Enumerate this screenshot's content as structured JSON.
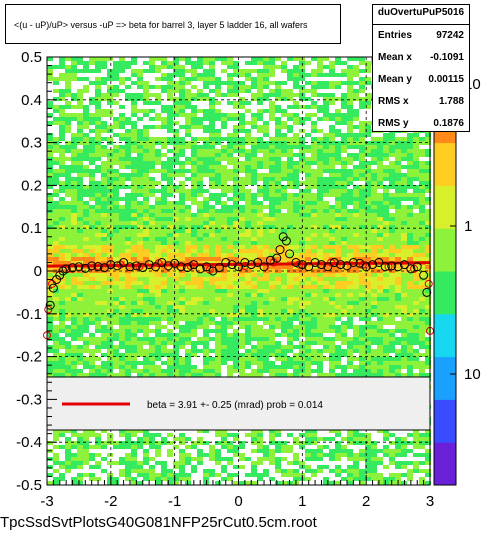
{
  "title": "<(u - uP)/uP> versus  -uP => beta for barrel 3, layer 5 ladder 16, all wafers",
  "stats": {
    "name": "duOvertuPuP5016",
    "rows": [
      {
        "label": "Entries",
        "value": "97242"
      },
      {
        "label": "Mean x",
        "value": "-0.1091"
      },
      {
        "label": "Mean y",
        "value": "0.00115"
      },
      {
        "label": "RMS x",
        "value": "1.788"
      },
      {
        "label": "RMS y",
        "value": "0.1876"
      }
    ]
  },
  "legend": {
    "entry": "beta =    3.91 +-  0.25 (mrad) prob = 0.014"
  },
  "filename": "TpcSsdSvtPlotsG40G081NFP25rCut0.5cm.root",
  "colors": {
    "frame": "#000000",
    "fit_line": "#e00000",
    "legend_bg": "#efefef",
    "palette": [
      "#6a1fd9",
      "#3a4cff",
      "#1aa0ff",
      "#17d7f0",
      "#36ea60",
      "#8ff23a",
      "#d8f02c",
      "#ffcc22",
      "#ff8a1a",
      "#ff2a10"
    ]
  },
  "palette_labels": [
    "10",
    "1",
    "10"
  ],
  "chart_data": {
    "type": "heatmap",
    "xlim": [
      -3,
      3
    ],
    "ylim": [
      -0.5,
      0.5
    ],
    "x_ticks": [
      "-3",
      "-2",
      "-1",
      "0",
      "1",
      "2",
      "3"
    ],
    "y_ticks": [
      "-0.5",
      "-0.4",
      "-0.3",
      "-0.2",
      "-0.1",
      "0",
      "0.1",
      "0.2",
      "0.3",
      "0.4",
      "0.5"
    ],
    "grid": true,
    "fit": {
      "x": [
        -3,
        3
      ],
      "y": [
        0.0115,
        0.0195
      ]
    },
    "profile": {
      "x": [
        -2.95,
        -2.9,
        -2.85,
        -2.8,
        -2.75,
        -2.7,
        -2.6,
        -2.5,
        -2.4,
        -2.3,
        -2.2,
        -2.1,
        -2.0,
        -1.9,
        -1.8,
        -1.7,
        -1.6,
        -1.5,
        -1.4,
        -1.3,
        -1.2,
        -1.1,
        -1.0,
        -0.9,
        -0.8,
        -0.7,
        -0.6,
        -0.5,
        -0.4,
        -0.3,
        -0.2,
        -0.1,
        0.0,
        0.1,
        0.2,
        0.3,
        0.4,
        0.5,
        0.6,
        0.65,
        0.7,
        0.75,
        0.8,
        0.9,
        1.0,
        1.1,
        1.2,
        1.3,
        1.4,
        1.5,
        1.6,
        1.7,
        1.8,
        1.9,
        2.0,
        2.1,
        2.2,
        2.3,
        2.4,
        2.5,
        2.6,
        2.7,
        2.8,
        2.9,
        2.95
      ],
      "y": [
        -0.08,
        -0.04,
        -0.02,
        -0.01,
        0.0,
        0.005,
        0.008,
        0.01,
        0.006,
        0.012,
        0.01,
        0.008,
        0.015,
        0.012,
        0.02,
        0.01,
        0.012,
        0.008,
        0.015,
        0.01,
        0.02,
        0.012,
        0.018,
        0.01,
        0.008,
        0.015,
        0.005,
        0.01,
        0.0,
        0.008,
        0.02,
        0.015,
        0.01,
        0.02,
        0.015,
        0.02,
        0.01,
        0.025,
        0.03,
        0.05,
        0.08,
        0.07,
        0.04,
        0.02,
        0.015,
        0.01,
        0.02,
        0.015,
        0.01,
        0.02,
        0.015,
        0.012,
        0.02,
        0.018,
        0.01,
        0.015,
        0.02,
        0.01,
        0.012,
        0.01,
        0.015,
        0.005,
        0.01,
        -0.01,
        -0.05
      ]
    },
    "red_points": {
      "x": [
        -3.0,
        -2.98,
        -2.92,
        -2.6,
        -2.2,
        -1.85,
        -1.55,
        -1.25,
        -0.75,
        -0.45,
        0.1,
        0.55,
        0.95,
        1.45,
        1.95,
        2.35,
        2.75,
        2.98,
        3.0
      ],
      "y": [
        -0.15,
        -0.09,
        -0.03,
        0.005,
        0.012,
        0.015,
        0.01,
        0.018,
        0.012,
        0.003,
        0.012,
        0.02,
        0.015,
        0.02,
        0.015,
        0.01,
        0.005,
        -0.03,
        -0.14
      ]
    }
  }
}
